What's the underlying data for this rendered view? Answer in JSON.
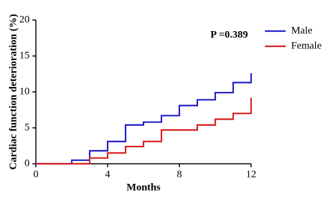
{
  "chart_data": {
    "type": "line",
    "step": "post",
    "x": [
      0,
      2,
      3,
      4,
      5,
      6,
      7,
      8,
      9,
      10,
      11,
      12
    ],
    "series": [
      {
        "name": "Male",
        "color": "#1f1fc8",
        "values": [
          0,
          0.5,
          1.8,
          3.1,
          5.4,
          5.8,
          6.7,
          8.1,
          8.9,
          9.9,
          11.3,
          12.6
        ]
      },
      {
        "name": "Female",
        "color": "#d81e1e",
        "values": [
          0,
          0,
          0.8,
          1.5,
          2.4,
          3.1,
          4.7,
          4.7,
          5.4,
          6.2,
          7.0,
          9.2
        ]
      }
    ],
    "xlabel": "Months",
    "ylabel": "Cardiac function deterioration (%)",
    "annotation": "P =0.389",
    "xlim": [
      0,
      12
    ],
    "xticks": [
      0,
      4,
      8,
      12
    ],
    "ylim": [
      0,
      20
    ],
    "yticks": [
      0,
      5,
      10,
      15,
      20
    ],
    "grid": false,
    "legend": "upper right"
  }
}
